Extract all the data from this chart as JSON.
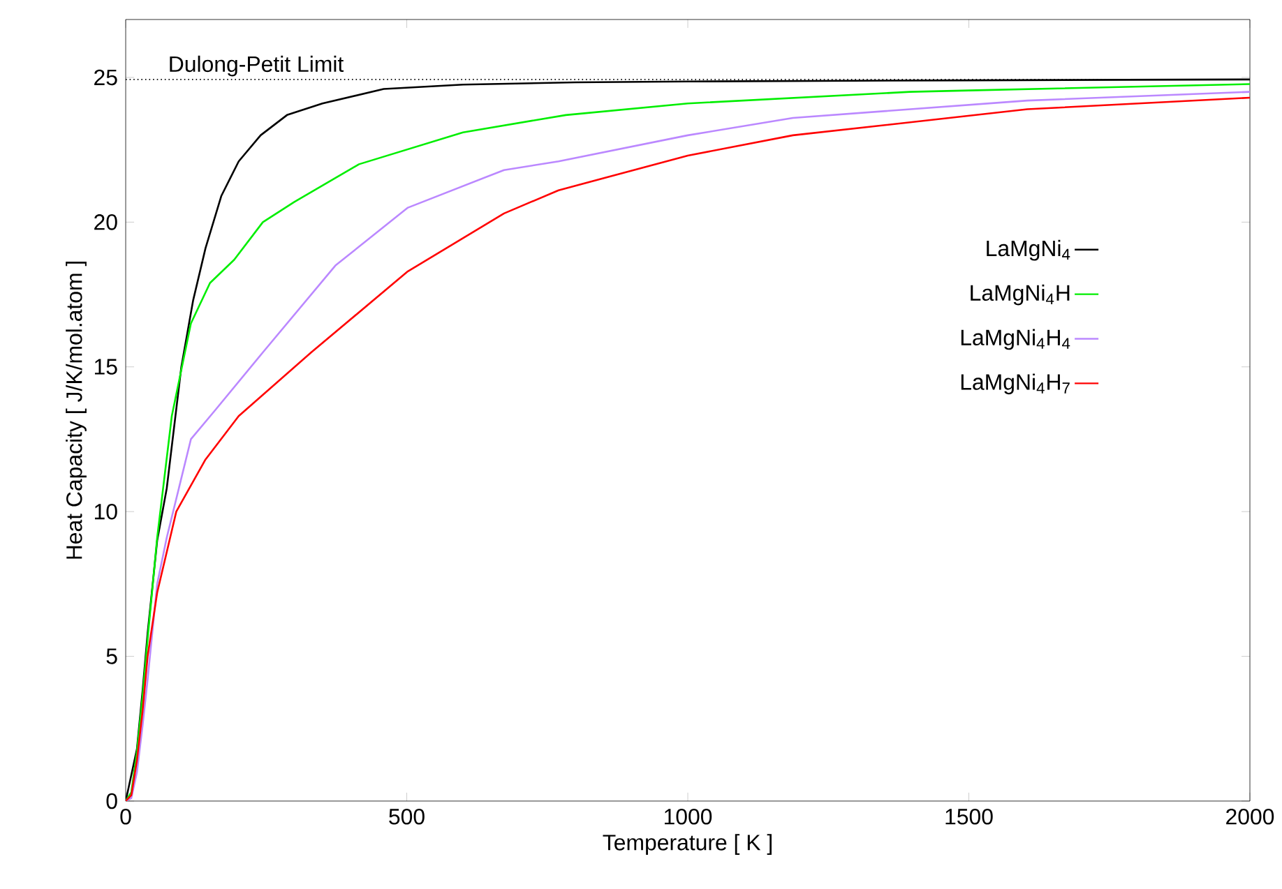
{
  "chart_data": {
    "type": "line",
    "xlabel": "Temperature [ K ]",
    "ylabel": "Heat Capacity [ J/K/mol.atom ]",
    "xlim": [
      0,
      2000
    ],
    "ylim": [
      0,
      27
    ],
    "xticks": [
      0,
      500,
      1000,
      1500,
      2000
    ],
    "yticks": [
      0,
      5,
      10,
      15,
      20,
      25
    ],
    "legend": "right",
    "grid": false,
    "marker": "none",
    "line_style": "solid",
    "ref_lines": [
      {
        "axis": "y",
        "value": 24.93,
        "label": "Dulong-Petit Limit",
        "color": "#000000",
        "line_style": "dotted"
      }
    ],
    "series": [
      {
        "name": "LaMgNi$_{4}$",
        "color": "#000000",
        "x": [
          0,
          10,
          20,
          30,
          39,
          56,
          73,
          99,
          120,
          142,
          170,
          201,
          240,
          287,
          350,
          459,
          600,
          800,
          1000,
          1500,
          2000
        ],
        "values": [
          0,
          null,
          1.8,
          3.8,
          5.8,
          9.0,
          10.8,
          15.0,
          17.3,
          19.1,
          20.9,
          22.1,
          23.0,
          23.7,
          24.1,
          24.6,
          24.75,
          24.83,
          24.86,
          24.9,
          24.93
        ]
      },
      {
        "name": "LaMgNi$_{4}$H",
        "color": "#00ee00",
        "x": [
          0,
          10,
          20,
          30,
          40,
          56,
          82,
          116,
          150,
          193,
          244,
          300,
          415,
          600,
          783,
          1000,
          1395,
          1500,
          2000
        ],
        "values": [
          0,
          0.3,
          1.7,
          3.6,
          5.8,
          9.1,
          13.3,
          16.5,
          17.9,
          18.7,
          20.0,
          20.7,
          22.0,
          23.1,
          23.7,
          24.1,
          24.5,
          24.55,
          24.77
        ]
      },
      {
        "name": "LaMgNi$_{4}$H$_{4}$",
        "color": "#bb88ff",
        "x": [
          0,
          10,
          20,
          30,
          39,
          56,
          73,
          116,
          159,
          244,
          373,
          502,
          673,
          770,
          1000,
          1187,
          1604,
          2000
        ],
        "values": [
          0,
          0.1,
          1.0,
          2.6,
          4.2,
          7.5,
          9.1,
          12.5,
          13.5,
          15.5,
          18.5,
          20.5,
          21.8,
          22.1,
          23.0,
          23.6,
          24.2,
          24.5
        ]
      },
      {
        "name": "LaMgNi$_{4}$H$_{7}$",
        "color": "#ff0000",
        "x": [
          0,
          10,
          20,
          30,
          39,
          56,
          90,
          142,
          201,
          330,
          502,
          673,
          770,
          1000,
          1187,
          1604,
          2000
        ],
        "values": [
          0,
          0.2,
          1.4,
          3.1,
          5.0,
          7.2,
          10.0,
          11.8,
          13.3,
          15.5,
          18.3,
          20.3,
          21.1,
          22.3,
          23.0,
          23.9,
          24.3
        ]
      }
    ]
  }
}
